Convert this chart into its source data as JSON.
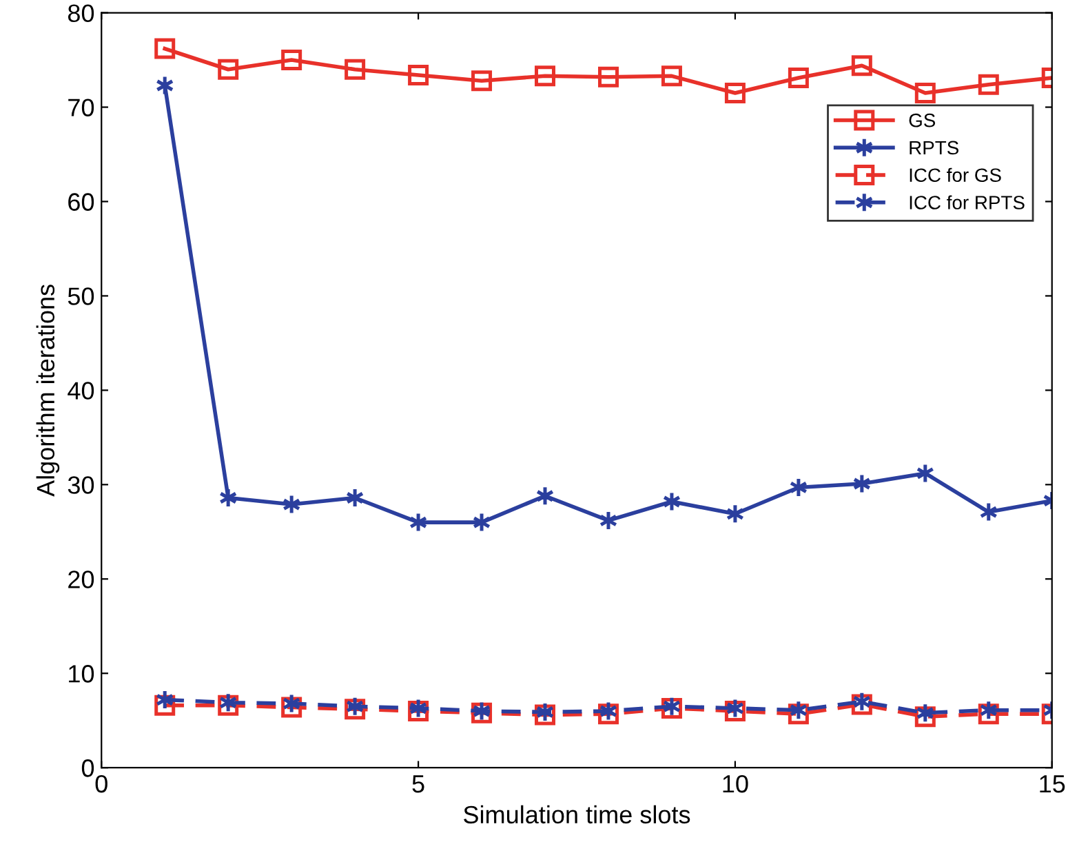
{
  "chart_data": {
    "type": "line",
    "xlabel": "Simulation time slots",
    "ylabel": "Algorithm iterations",
    "x": [
      1,
      2,
      3,
      4,
      5,
      6,
      7,
      8,
      9,
      10,
      11,
      12,
      13,
      14,
      15
    ],
    "xlim": [
      0,
      15
    ],
    "xticks": [
      0,
      5,
      10,
      15
    ],
    "ylim": [
      0,
      80
    ],
    "yticks": [
      0,
      10,
      20,
      30,
      40,
      50,
      60,
      70,
      80
    ],
    "grid": false,
    "legend": "top right",
    "series": [
      {
        "name": "GS",
        "color": "#e8312a",
        "marker": "square",
        "line_style": "solid",
        "values": [
          76.2,
          74,
          75,
          74,
          73.4,
          72.8,
          73.3,
          73.2,
          73.3,
          71.5,
          73.1,
          74.4,
          71.5,
          72.4,
          73.1
        ]
      },
      {
        "name": "RPTS",
        "color": "#2b3f9e",
        "marker": "cross",
        "line_style": "solid",
        "values": [
          72.3,
          28.6,
          27.9,
          28.6,
          26,
          26,
          28.8,
          26.2,
          28.2,
          26.9,
          29.7,
          30.1,
          31.2,
          27.1,
          28.3
        ]
      },
      {
        "name": "ICC for GS",
        "color": "#e8312a",
        "marker": "square",
        "line_style": "dashed",
        "values": [
          6.6,
          6.6,
          6.4,
          6.2,
          6.0,
          5.8,
          5.6,
          5.7,
          6.3,
          6.0,
          5.7,
          6.7,
          5.4,
          5.7,
          5.7
        ]
      },
      {
        "name": "ICC for RPTS",
        "color": "#2b3f9e",
        "marker": "cross",
        "line_style": "dashed",
        "values": [
          7.2,
          6.9,
          6.8,
          6.5,
          6.3,
          6.0,
          5.9,
          6.0,
          6.5,
          6.3,
          6.1,
          7.0,
          5.8,
          6.1,
          6.1
        ]
      }
    ]
  }
}
